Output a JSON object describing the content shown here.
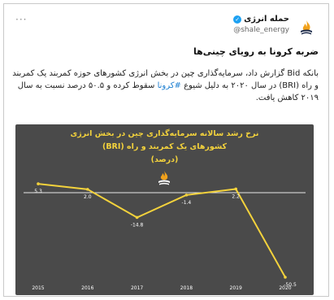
{
  "tweet": {
    "more": "···",
    "account_name": "حمله انرژی",
    "handle": "@shale_energy",
    "headline": "ضربه کرونا به رویای چینی‌ها",
    "body_before_hashtag": "بانکه Bid گزارش داد، سرمایه‌گذاری چین در بخش انرژی کشورهای حوزه کمربند یک کمربند و راه (BRI) در سال ۲۰۲۰ به دلیل شیوع",
    "hashtag": "#کرونا",
    "body_after_hashtag": "سقوط کرده و ۵۰.۵ درصد نسبت به سال ۲۰۱۹ کاهش یافت."
  },
  "chart_data": {
    "type": "line",
    "title_lines": [
      "نرخ رشد سالانه سرمایه‌گذاری چین در بخش انرژی",
      "کشورهای یک کمربند و راه (BRI)",
      "(درصد)"
    ],
    "x": [
      "2015",
      "2016",
      "2017",
      "2018",
      "2019",
      "2020"
    ],
    "series": [
      {
        "values": [
          5.3,
          2.0,
          -14.8,
          -1.4,
          2.2,
          -50.5
        ]
      }
    ],
    "value_labels": [
      "5.3",
      "2.0",
      "-14.8",
      "-1.4",
      "2.2",
      "-50.5"
    ],
    "zero_line": true,
    "colors": {
      "line": "#f3d23c",
      "background": "#4a4a4a",
      "text": "#f3d23c",
      "zero_line": "#e8e8e8"
    }
  }
}
